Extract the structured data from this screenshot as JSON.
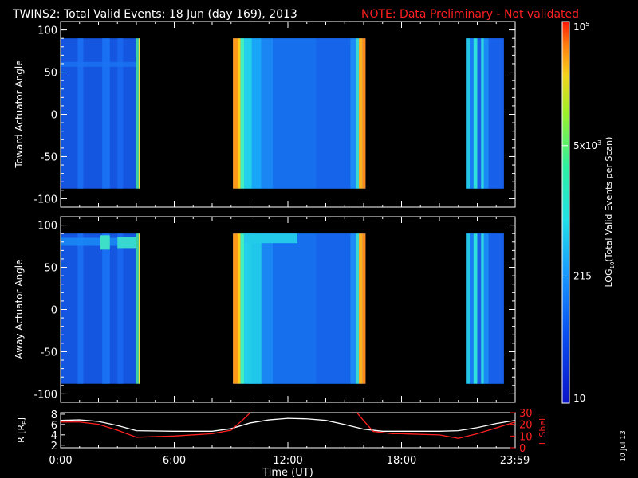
{
  "title": "TWINS2: Total Valid Events: 18 Jun (day 169), 2013",
  "note": "NOTE: Data Preliminary - Not validated",
  "footer_date": "10 Jul 13",
  "colors": {
    "background": "#000000",
    "axes": "#ffffff",
    "note": "#ff2020",
    "r_line": "#ffffff",
    "lshell_line": "#ff2020"
  },
  "colorbar": {
    "label": "LOG10(Total Valid Events per Scan)",
    "label_main": "LOG",
    "label_sub": "10",
    "label_rest": "(Total Valid Events per Scan)",
    "scale": "log",
    "range": [
      10,
      100000
    ],
    "ticks": [
      {
        "value": 10,
        "text": "10",
        "base": "10",
        "exp": ""
      },
      {
        "value": 215,
        "text": "215",
        "base": "215",
        "exp": ""
      },
      {
        "value": 5000,
        "text": "5x10^3",
        "base": "5x10",
        "exp": "3"
      },
      {
        "value": 100000,
        "text": "10^5",
        "base": "10",
        "exp": "5"
      }
    ],
    "colormap": "rainbow (blue-cyan-green-yellow-red)"
  },
  "chart_data": [
    {
      "type": "heatmap",
      "ylabel": "Toward Actuator Angle",
      "xlabel": "",
      "xlim": [
        0,
        24
      ],
      "ylim": [
        -110,
        110
      ],
      "yticks": [
        100,
        50,
        0,
        -50,
        -100
      ],
      "data_y_range": [
        -88,
        90
      ],
      "data_segments_hours": [
        [
          0.0,
          4.2
        ],
        [
          9.1,
          16.1
        ],
        [
          21.4,
          23.4
        ]
      ],
      "z_description": "low counts (~20-60) across most of the band; high counts (~5000-100000) at segment edges near 4.1, 9.2-10.3 and 15.7-16.1 UT"
    },
    {
      "type": "heatmap",
      "ylabel": "Away Actuator Angle",
      "xlabel": "",
      "xlim": [
        0,
        24
      ],
      "ylim": [
        -110,
        110
      ],
      "yticks": [
        100,
        50,
        0,
        -50,
        -100
      ],
      "data_y_range": [
        -88,
        90
      ],
      "data_segments_hours": [
        [
          0.0,
          4.2
        ],
        [
          9.1,
          16.1
        ],
        [
          21.4,
          23.4
        ]
      ],
      "z_description": "similar to upper panel with enhanced counts near +75 deg between 2 and 4 UT and 9-12 UT"
    },
    {
      "type": "line",
      "xlabel": "Time (UT)",
      "xlim": [
        0,
        24
      ],
      "xticks": [
        "0:00",
        "6:00",
        "12:00",
        "18:00",
        "23:59"
      ],
      "xtick_hours": [
        0,
        6,
        12,
        18,
        23.98
      ],
      "left_axis": {
        "label": "R [RE]",
        "label_main": "R [R",
        "label_sub": "E",
        "label_end": "]",
        "ylim": [
          1.5,
          8.3
        ],
        "ticks": [
          8,
          6,
          4,
          2
        ]
      },
      "right_axis": {
        "label": "L Shell",
        "ylim": [
          0,
          30
        ],
        "ticks": [
          30,
          20,
          10,
          0
        ]
      },
      "series": [
        {
          "axis": "left",
          "color": "#ffffff",
          "x": [
            0,
            1,
            2,
            3,
            4,
            6,
            8,
            9,
            10,
            11,
            12,
            13,
            14,
            15,
            16,
            17,
            18,
            20,
            21,
            22,
            23,
            24
          ],
          "y": [
            6.8,
            6.9,
            6.6,
            5.8,
            4.8,
            4.7,
            4.7,
            5.2,
            6.3,
            6.9,
            7.2,
            7.1,
            6.8,
            6.0,
            5.1,
            4.7,
            4.7,
            4.7,
            4.8,
            5.4,
            6.2,
            6.8
          ]
        },
        {
          "axis": "right",
          "color": "#ff2020",
          "x": [
            0,
            1,
            2,
            3,
            4,
            6,
            8,
            9,
            9.7,
            10.2,
            15.5,
            15.9,
            16.5,
            17.5,
            18,
            20,
            21,
            22,
            23,
            24
          ],
          "y": [
            22,
            22,
            20,
            15,
            9,
            10,
            12,
            15,
            25,
            33,
            33,
            25,
            14,
            12,
            12,
            11,
            8,
            12,
            17,
            22
          ]
        }
      ]
    }
  ]
}
